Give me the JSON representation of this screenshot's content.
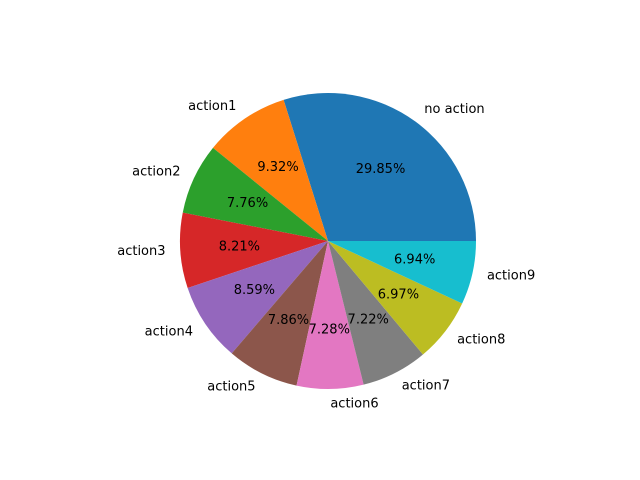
{
  "chart_data": {
    "type": "pie",
    "start_angle_deg": 0,
    "direction": "counterclockwise",
    "legend": false,
    "slices": [
      {
        "label": "no action",
        "value": 29.85,
        "pct_label": "29.85%",
        "color": "#1f77b4"
      },
      {
        "label": "action1",
        "value": 9.32,
        "pct_label": "9.32%",
        "color": "#ff7f0e"
      },
      {
        "label": "action2",
        "value": 7.76,
        "pct_label": "7.76%",
        "color": "#2ca02c"
      },
      {
        "label": "action3",
        "value": 8.21,
        "pct_label": "8.21%",
        "color": "#d62728"
      },
      {
        "label": "action4",
        "value": 8.59,
        "pct_label": "8.59%",
        "color": "#9467bd"
      },
      {
        "label": "action5",
        "value": 7.86,
        "pct_label": "7.86%",
        "color": "#8c564b"
      },
      {
        "label": "action6",
        "value": 7.28,
        "pct_label": "7.28%",
        "color": "#e377c2"
      },
      {
        "label": "action7",
        "value": 7.22,
        "pct_label": "7.22%",
        "color": "#7f7f7f"
      },
      {
        "label": "action8",
        "value": 6.97,
        "pct_label": "6.97%",
        "color": "#bcbd22"
      },
      {
        "label": "action9",
        "value": 6.94,
        "pct_label": "6.94%",
        "color": "#17becf"
      }
    ]
  }
}
